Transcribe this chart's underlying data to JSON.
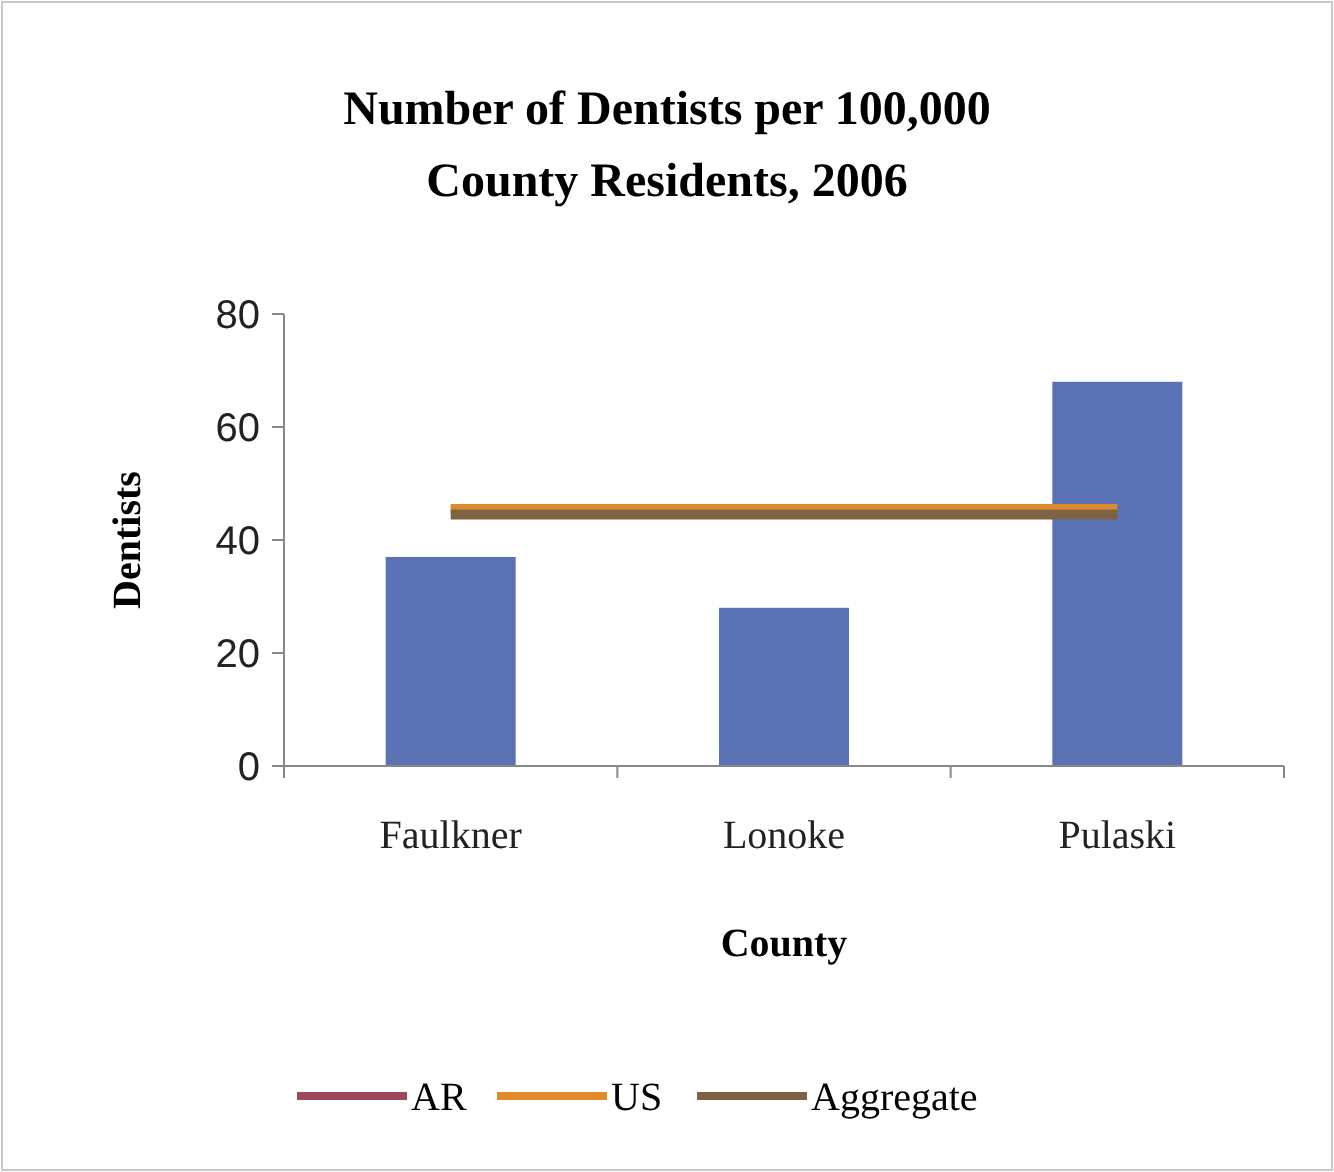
{
  "chart_data": {
    "type": "bar",
    "title": "Number of Dentists per 100,000 County Residents, 2006",
    "xlabel": "County",
    "ylabel": "Dentists",
    "categories": [
      "Faulkner",
      "Lonoke",
      "Pulaski"
    ],
    "ylim": [
      0,
      80
    ],
    "yticks": [
      0,
      20,
      40,
      60,
      80
    ],
    "grid": false,
    "legend": "bottom",
    "series": [
      {
        "color": "#5b73b4",
        "values": [
          37,
          28,
          68
        ]
      },
      {
        "type": "line",
        "name": "AR",
        "color": "#9b4a5c",
        "values": [
          null,
          null,
          null
        ]
      },
      {
        "type": "line",
        "name": "US",
        "color": "#e08a2c",
        "values": [
          45.5,
          45.5,
          45.5
        ]
      },
      {
        "type": "line",
        "name": "Aggregate",
        "color": "#7d6343",
        "values": [
          44.5,
          44.5,
          44.5
        ]
      }
    ]
  }
}
